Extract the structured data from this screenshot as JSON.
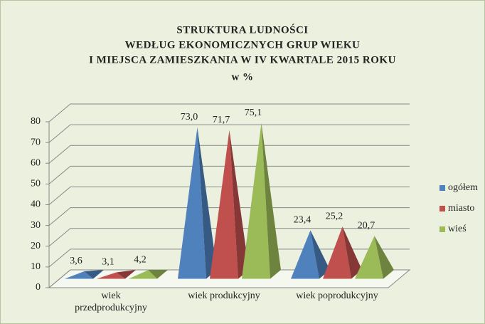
{
  "chart_data": {
    "type": "bar3d-pyramid",
    "title": [
      "STRUKTURA LUDNOŚCI",
      "WEDŁUG EKONOMICZNYCH GRUP WIEKU",
      "I MIEJSCA ZAMIESZKANIA W IV KWARTALE 2015 ROKU"
    ],
    "subtitle": "w %",
    "categories": [
      "wiek przedprodukcyjny",
      "wiek produkcyjny",
      "wiek poprodukcyjny"
    ],
    "series": [
      {
        "name": "ogółem",
        "color": "#4f81bd",
        "values": [
          3.6,
          73.0,
          23.4
        ],
        "value_labels": [
          "3,6",
          "73,0",
          "23,4"
        ]
      },
      {
        "name": "miasto",
        "color": "#c0504d",
        "values": [
          3.1,
          71.7,
          25.2
        ],
        "value_labels": [
          "3,1",
          "71,7",
          "25,2"
        ]
      },
      {
        "name": "wieś",
        "color": "#9bbb59",
        "values": [
          4.2,
          75.1,
          20.7
        ],
        "value_labels": [
          "4,2",
          "75,1",
          "20,7"
        ]
      }
    ],
    "ylim": [
      0,
      80
    ],
    "yticks": [
      0,
      10,
      20,
      30,
      40,
      50,
      60,
      70,
      80
    ],
    "grid": true,
    "legend": "right"
  }
}
